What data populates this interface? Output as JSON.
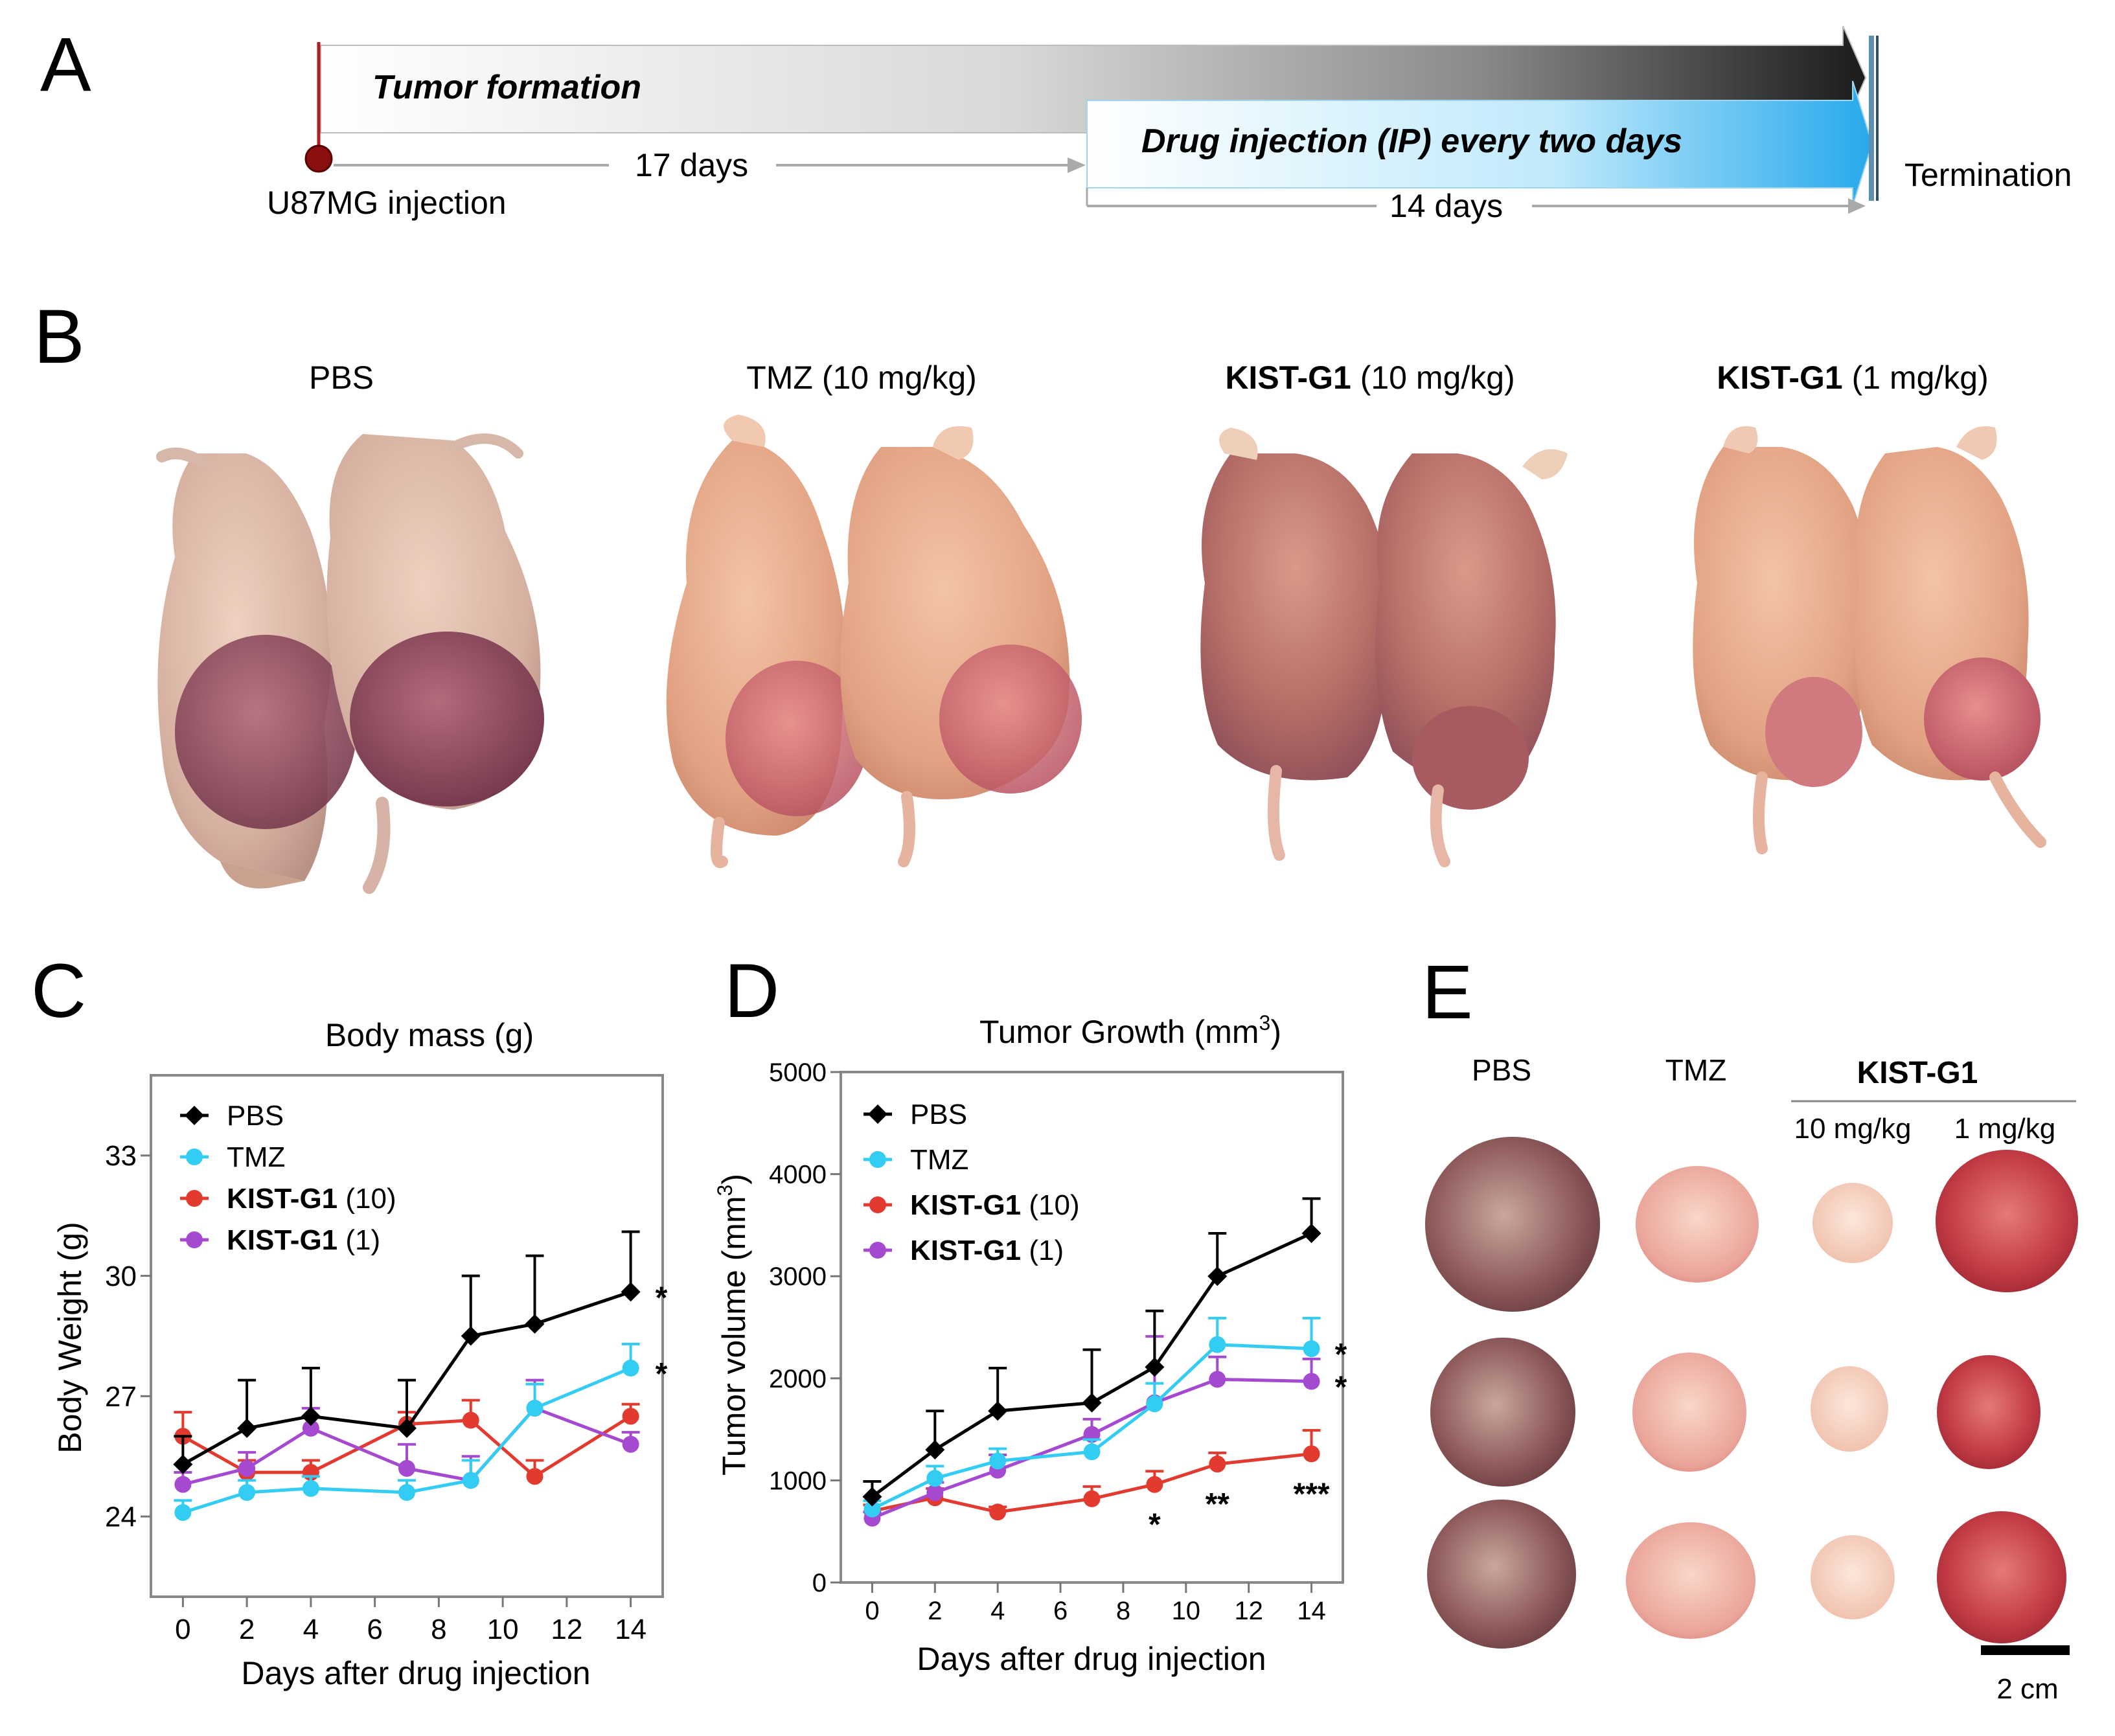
{
  "panels": {
    "A": "A",
    "B": "B",
    "C": "C",
    "D": "D",
    "E": "E"
  },
  "timeline": {
    "tumor_formation": "Tumor formation",
    "drug_injection": "Drug injection (IP) every two days",
    "days_17": "17 days",
    "days_14": "14 days",
    "u87_injection": "U87MG injection",
    "termination": "Termination"
  },
  "photo_labels": {
    "pbs": "PBS",
    "tmz": "TMZ (10 mg/kg)",
    "kist_10_bold": "KIST-G1",
    "kist_10_rest": " (10 mg/kg)",
    "kist_1_bold": "KIST-G1",
    "kist_1_rest": " (1 mg/kg)"
  },
  "tumor_panel": {
    "pbs": "PBS",
    "tmz": "TMZ",
    "kist": "KIST-G1",
    "dose_10": "10 mg/kg",
    "dose_1": "1 mg/kg",
    "scale": "2 cm"
  },
  "legend": [
    {
      "bold": "PBS",
      "rest": "",
      "color": "#000000",
      "marker": "diamond"
    },
    {
      "bold": "TMZ",
      "rest": "",
      "color": "#33ccf2",
      "marker": "circle"
    },
    {
      "bold": "KIST-G1",
      "rest": " (10)",
      "color": "#e23a2e",
      "marker": "circle"
    },
    {
      "bold": "KIST-G1",
      "rest": " (1)",
      "color": "#a54ad0",
      "marker": "circle"
    }
  ],
  "chart_data": [
    {
      "type": "line",
      "title": "Body mass (g)",
      "xlabel": "Days after drug injection",
      "ylabel": "Body Weight (g)",
      "xlim": [
        -1,
        15
      ],
      "ylim": [
        22,
        35
      ],
      "xticks": [
        0,
        2,
        4,
        6,
        8,
        10,
        12,
        14
      ],
      "yticks": [
        24,
        27,
        30,
        33
      ],
      "x": [
        0,
        2,
        4,
        7,
        9,
        11,
        14
      ],
      "series": [
        {
          "name": "PBS",
          "values": [
            25.3,
            26.2,
            26.5,
            26.2,
            28.5,
            28.8,
            29.6
          ],
          "errors": [
            0.7,
            1.2,
            1.2,
            1.2,
            1.5,
            1.7,
            1.5
          ]
        },
        {
          "name": "TMZ",
          "values": [
            24.1,
            24.6,
            24.7,
            24.6,
            24.9,
            26.7,
            27.7
          ],
          "errors": [
            0.3,
            0.3,
            0.3,
            0.3,
            0.5,
            0.6,
            0.6
          ]
        },
        {
          "name": "KIST-G1 (10)",
          "values": [
            26.0,
            25.1,
            25.1,
            26.3,
            26.4,
            25.0,
            26.5
          ],
          "errors": [
            0.6,
            0.3,
            0.3,
            0.3,
            0.5,
            0.4,
            0.3
          ]
        },
        {
          "name": "KIST-G1 (1)",
          "values": [
            24.8,
            25.2,
            26.2,
            25.2,
            24.9,
            26.7,
            25.8
          ],
          "errors": [
            0.3,
            0.4,
            0.5,
            0.6,
            0.6,
            0.7,
            0.3
          ]
        }
      ],
      "significance": [
        {
          "series": "PBS",
          "x": 14,
          "label": "*"
        },
        {
          "series": "TMZ",
          "x": 14,
          "label": "*"
        }
      ]
    },
    {
      "type": "line",
      "title": "Tumor Growth (mm",
      "title_sup": "3",
      "title_end": ")",
      "xlabel": "Days after drug injection",
      "ylabel": "Tumor volume (mm",
      "ylabel_sup": "3",
      "ylabel_end": ")",
      "xlim": [
        -1,
        15
      ],
      "ylim": [
        0,
        5000
      ],
      "xticks": [
        0,
        2,
        4,
        6,
        8,
        10,
        12,
        14
      ],
      "yticks": [
        0,
        1000,
        2000,
        3000,
        4000,
        5000
      ],
      "x": [
        0,
        2,
        4,
        7,
        9,
        11,
        14
      ],
      "series": [
        {
          "name": "PBS",
          "values": [
            840,
            1300,
            1680,
            1760,
            2110,
            3000,
            3420
          ],
          "errors": [
            150,
            380,
            420,
            520,
            550,
            420,
            340
          ]
        },
        {
          "name": "TMZ",
          "values": [
            720,
            1020,
            1190,
            1280,
            1750,
            2330,
            2290
          ],
          "errors": [
            80,
            120,
            120,
            120,
            200,
            260,
            300
          ]
        },
        {
          "name": "KIST-G1 (10)",
          "values": [
            700,
            830,
            690,
            820,
            960,
            1160,
            1260
          ],
          "errors": [
            60,
            90,
            50,
            120,
            130,
            110,
            230
          ]
        },
        {
          "name": "KIST-G1 (1)",
          "values": [
            630,
            880,
            1100,
            1450,
            1760,
            1990,
            1970
          ],
          "errors": [
            60,
            100,
            150,
            150,
            650,
            220,
            220
          ]
        }
      ],
      "significance": [
        {
          "series": "TMZ",
          "x": 14,
          "label": "*"
        },
        {
          "series": "KIST-G1 (1)",
          "x": 14,
          "label": "*"
        },
        {
          "series": "KIST-G1 (10)",
          "x": 9,
          "label": "*"
        },
        {
          "series": "KIST-G1 (10)",
          "x": 11,
          "label": "**"
        },
        {
          "series": "KIST-G1 (10)",
          "x": 14,
          "label": "***"
        }
      ]
    }
  ]
}
